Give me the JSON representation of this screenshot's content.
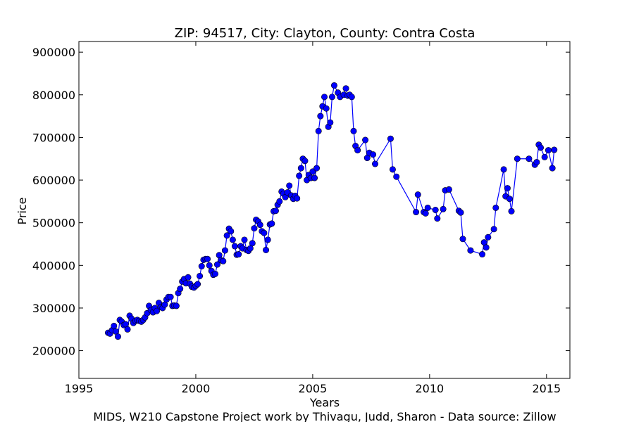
{
  "chart_data": {
    "type": "line",
    "title": "ZIP: 94517, City: Clayton, County: Contra Costa",
    "xlabel": "Years",
    "ylabel": "Price",
    "xlim": [
      1995,
      2016
    ],
    "ylim": [
      135000,
      925000
    ],
    "xticks": [
      1995,
      2000,
      2005,
      2010,
      2015
    ],
    "yticks": [
      200000,
      300000,
      400000,
      500000,
      600000,
      700000,
      800000,
      900000
    ],
    "xtick_labels": [
      "1995",
      "2000",
      "2005",
      "2010",
      "2015"
    ],
    "ytick_labels": [
      "200000",
      "300000",
      "400000",
      "500000",
      "600000",
      "700000",
      "800000",
      "900000"
    ],
    "grid": false,
    "line_color": "#0000ff",
    "marker": "circle",
    "footer": "MIDS, W210 Capstone Project work by Thivagu, Judd, Sharon  -  Data source: Zillow",
    "series": [
      {
        "points": [
          [
            1996.25,
            242000
          ],
          [
            1996.33,
            240000
          ],
          [
            1996.42,
            248000
          ],
          [
            1996.5,
            258000
          ],
          [
            1996.58,
            245000
          ],
          [
            1996.67,
            233000
          ],
          [
            1996.75,
            272000
          ],
          [
            1996.83,
            268000
          ],
          [
            1996.92,
            260000
          ],
          [
            1997.0,
            262000
          ],
          [
            1997.08,
            250000
          ],
          [
            1997.17,
            282000
          ],
          [
            1997.25,
            275000
          ],
          [
            1997.33,
            265000
          ],
          [
            1997.42,
            270000
          ],
          [
            1997.5,
            272000
          ],
          [
            1997.58,
            270000
          ],
          [
            1997.67,
            268000
          ],
          [
            1997.75,
            272000
          ],
          [
            1997.83,
            278000
          ],
          [
            1997.92,
            288000
          ],
          [
            1998.0,
            305000
          ],
          [
            1998.08,
            295000
          ],
          [
            1998.17,
            290000
          ],
          [
            1998.25,
            300000
          ],
          [
            1998.33,
            293000
          ],
          [
            1998.42,
            312000
          ],
          [
            1998.5,
            302000
          ],
          [
            1998.58,
            300000
          ],
          [
            1998.67,
            308000
          ],
          [
            1998.75,
            320000
          ],
          [
            1998.83,
            326000
          ],
          [
            1998.92,
            326000
          ],
          [
            1999.0,
            305000
          ],
          [
            1999.08,
            306000
          ],
          [
            1999.17,
            305000
          ],
          [
            1999.25,
            335000
          ],
          [
            1999.33,
            345000
          ],
          [
            1999.42,
            362000
          ],
          [
            1999.5,
            368000
          ],
          [
            1999.58,
            358000
          ],
          [
            1999.67,
            372000
          ],
          [
            1999.75,
            357000
          ],
          [
            1999.83,
            350000
          ],
          [
            1999.92,
            348000
          ],
          [
            2000.0,
            352000
          ],
          [
            2000.08,
            356000
          ],
          [
            2000.17,
            375000
          ],
          [
            2000.25,
            398000
          ],
          [
            2000.33,
            413000
          ],
          [
            2000.42,
            415000
          ],
          [
            2000.5,
            415000
          ],
          [
            2000.58,
            400000
          ],
          [
            2000.67,
            387000
          ],
          [
            2000.75,
            378000
          ],
          [
            2000.83,
            380000
          ],
          [
            2000.92,
            402000
          ],
          [
            2001.0,
            424000
          ],
          [
            2001.08,
            412000
          ],
          [
            2001.17,
            410000
          ],
          [
            2001.25,
            435000
          ],
          [
            2001.33,
            470000
          ],
          [
            2001.42,
            486000
          ],
          [
            2001.5,
            480000
          ],
          [
            2001.58,
            460000
          ],
          [
            2001.67,
            445000
          ],
          [
            2001.75,
            425000
          ],
          [
            2001.83,
            426000
          ],
          [
            2001.92,
            445000
          ],
          [
            2002.0,
            440000
          ],
          [
            2002.08,
            460000
          ],
          [
            2002.17,
            436000
          ],
          [
            2002.25,
            434000
          ],
          [
            2002.33,
            440000
          ],
          [
            2002.42,
            452000
          ],
          [
            2002.5,
            487000
          ],
          [
            2002.58,
            507000
          ],
          [
            2002.67,
            503000
          ],
          [
            2002.75,
            495000
          ],
          [
            2002.83,
            480000
          ],
          [
            2002.92,
            476000
          ],
          [
            2003.0,
            436000
          ],
          [
            2003.08,
            460000
          ],
          [
            2003.17,
            496000
          ],
          [
            2003.25,
            498000
          ],
          [
            2003.33,
            527000
          ],
          [
            2003.42,
            528000
          ],
          [
            2003.5,
            542000
          ],
          [
            2003.58,
            550000
          ],
          [
            2003.67,
            573000
          ],
          [
            2003.75,
            568000
          ],
          [
            2003.83,
            560000
          ],
          [
            2003.92,
            571000
          ],
          [
            2004.0,
            587000
          ],
          [
            2004.08,
            564000
          ],
          [
            2004.17,
            556000
          ],
          [
            2004.25,
            563000
          ],
          [
            2004.33,
            557000
          ],
          [
            2004.42,
            610000
          ],
          [
            2004.5,
            628000
          ],
          [
            2004.58,
            650000
          ],
          [
            2004.67,
            645000
          ],
          [
            2004.75,
            600000
          ],
          [
            2004.83,
            612000
          ],
          [
            2004.92,
            605000
          ],
          [
            2005.0,
            620000
          ],
          [
            2005.08,
            605000
          ],
          [
            2005.17,
            628000
          ],
          [
            2005.25,
            715000
          ],
          [
            2005.33,
            750000
          ],
          [
            2005.42,
            773000
          ],
          [
            2005.5,
            795000
          ],
          [
            2005.58,
            768000
          ],
          [
            2005.67,
            725000
          ],
          [
            2005.75,
            735000
          ],
          [
            2005.83,
            795000
          ],
          [
            2005.92,
            822000
          ],
          [
            2006.08,
            805000
          ],
          [
            2006.17,
            795000
          ],
          [
            2006.33,
            800000
          ],
          [
            2006.42,
            815000
          ],
          [
            2006.5,
            798000
          ],
          [
            2006.58,
            800000
          ],
          [
            2006.67,
            795000
          ],
          [
            2006.75,
            715000
          ],
          [
            2006.83,
            680000
          ],
          [
            2006.92,
            670000
          ],
          [
            2007.25,
            694000
          ],
          [
            2007.33,
            652000
          ],
          [
            2007.42,
            664000
          ],
          [
            2007.58,
            660000
          ],
          [
            2007.67,
            638000
          ],
          [
            2008.33,
            697000
          ],
          [
            2008.42,
            625000
          ],
          [
            2008.58,
            608000
          ],
          [
            2009.42,
            525000
          ],
          [
            2009.5,
            566000
          ],
          [
            2009.75,
            525000
          ],
          [
            2009.83,
            522000
          ],
          [
            2009.92,
            535000
          ],
          [
            2010.25,
            530000
          ],
          [
            2010.33,
            510000
          ],
          [
            2010.58,
            532000
          ],
          [
            2010.67,
            576000
          ],
          [
            2010.83,
            578000
          ],
          [
            2011.25,
            528000
          ],
          [
            2011.33,
            524000
          ],
          [
            2011.42,
            462000
          ],
          [
            2011.75,
            435000
          ],
          [
            2012.25,
            426000
          ],
          [
            2012.33,
            454000
          ],
          [
            2012.42,
            442000
          ],
          [
            2012.5,
            466000
          ],
          [
            2012.75,
            485000
          ],
          [
            2012.83,
            535000
          ],
          [
            2013.17,
            625000
          ],
          [
            2013.25,
            562000
          ],
          [
            2013.33,
            581000
          ],
          [
            2013.42,
            556000
          ],
          [
            2013.5,
            527000
          ],
          [
            2013.75,
            650000
          ],
          [
            2014.25,
            650000
          ],
          [
            2014.5,
            636000
          ],
          [
            2014.58,
            642000
          ],
          [
            2014.67,
            683000
          ],
          [
            2014.75,
            676000
          ],
          [
            2014.92,
            654000
          ],
          [
            2015.08,
            670000
          ],
          [
            2015.25,
            628000
          ],
          [
            2015.33,
            671000
          ]
        ]
      }
    ]
  }
}
